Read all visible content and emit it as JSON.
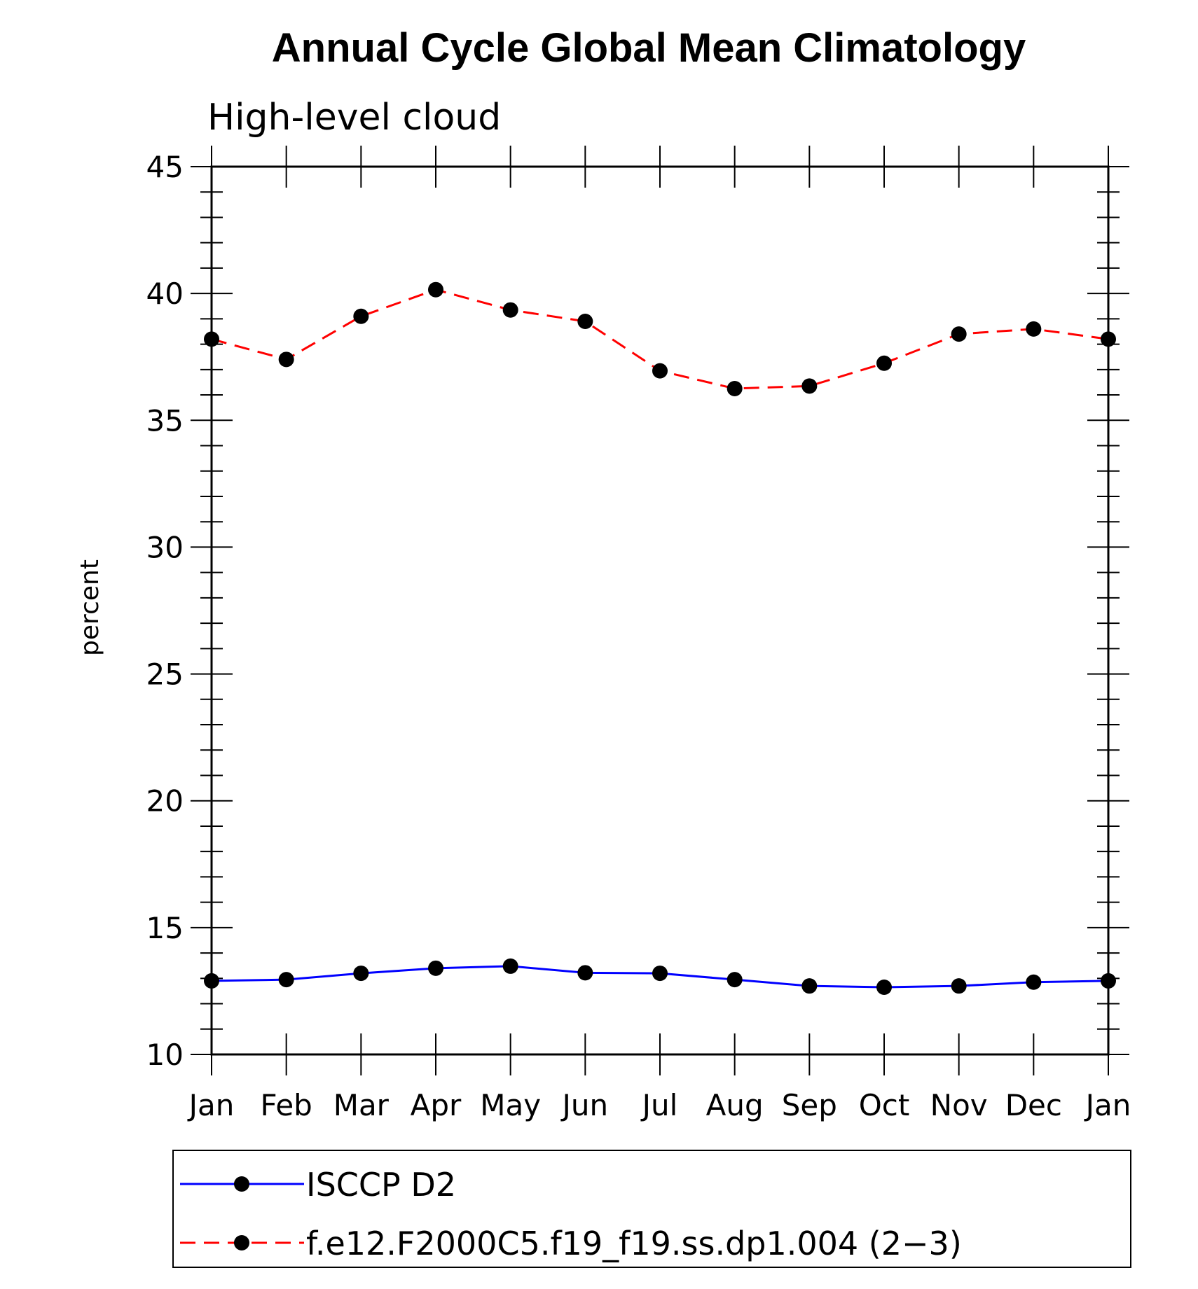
{
  "chart_data": {
    "type": "line",
    "title": "Annual Cycle Global Mean Climatology",
    "subtitle": "High-level cloud",
    "xlabel": "",
    "ylabel": "percent",
    "categories": [
      "Jan",
      "Feb",
      "Mar",
      "Apr",
      "May",
      "Jun",
      "Jul",
      "Aug",
      "Sep",
      "Oct",
      "Nov",
      "Dec",
      "Jan"
    ],
    "yticks": [
      "10",
      "15",
      "20",
      "25",
      "30",
      "35",
      "40",
      "45"
    ],
    "ylim": [
      10,
      45
    ],
    "series": [
      {
        "name": "ISCCP D2",
        "color": "#0000ff",
        "dash": "solid",
        "marker": "filled-circle",
        "values": [
          12.9,
          12.95,
          13.2,
          13.4,
          13.48,
          13.22,
          13.2,
          12.95,
          12.7,
          12.65,
          12.7,
          12.85,
          12.9
        ]
      },
      {
        "name": "f.e12.F2000C5.f19_f19.ss.dp1.004 (2−3)",
        "color": "#ff0000",
        "dash": "dashed",
        "marker": "filled-circle",
        "values": [
          38.2,
          37.4,
          39.1,
          40.15,
          39.35,
          38.9,
          36.95,
          36.25,
          36.35,
          37.25,
          38.4,
          38.6,
          38.2
        ]
      }
    ],
    "grid": false,
    "legend_position": "bottom"
  }
}
